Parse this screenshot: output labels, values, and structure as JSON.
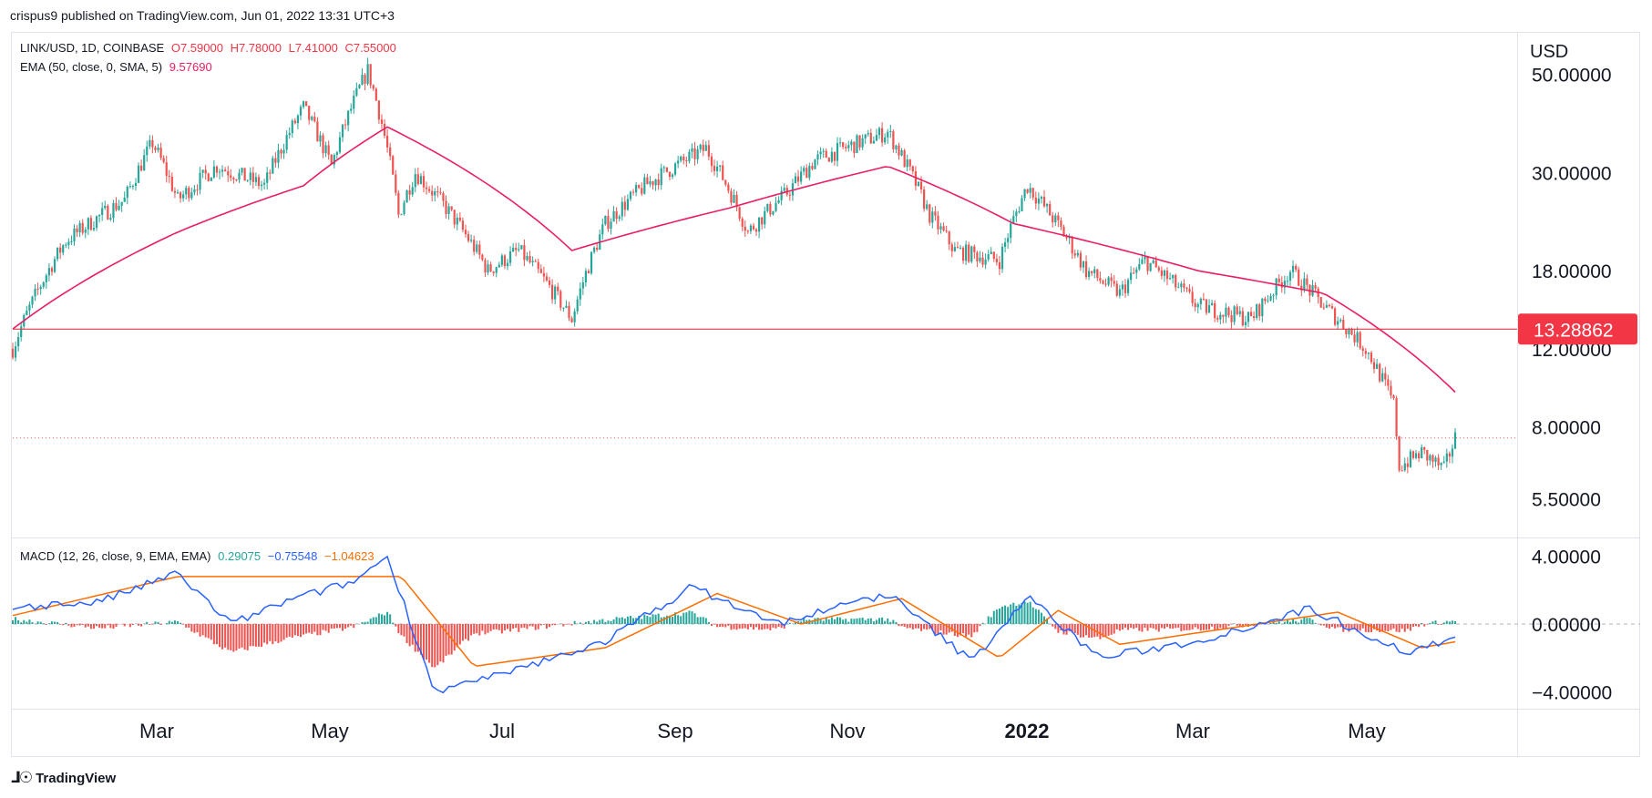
{
  "header": {
    "publisher_line": "crispus9 published on TradingView.com, Jun 01, 2022 13:31 UTC+3"
  },
  "legend_main": {
    "symbol": "LINK/USD, 1D, COINBASE",
    "o": "O7.59000",
    "h": "H7.78000",
    "l": "L7.41000",
    "c": "C7.55000",
    "ema_label": "EMA (50, close, 0, SMA, 5)",
    "ema_value": "9.57690"
  },
  "legend_macd": {
    "label": "MACD (12, 26, close, 9, EMA, EMA)",
    "hist_value": "0.29075",
    "macd_value": "−0.75548",
    "signal_value": "−1.04623"
  },
  "price_axis": {
    "currency": "USD",
    "ticks": [
      "50.00000",
      "30.00000",
      "18.00000",
      "12.00000",
      "8.00000",
      "5.50000"
    ],
    "tick_values": [
      50,
      30,
      18,
      12,
      8,
      5.5
    ],
    "highlight_label": "13.28862",
    "highlight_value": 13.28862
  },
  "macd_axis": {
    "ticks": [
      "4.00000",
      "0.00000",
      "−4.00000"
    ],
    "tick_values": [
      4,
      0,
      -4
    ]
  },
  "time_axis": {
    "labels": [
      "Mar",
      "May",
      "Jul",
      "Sep",
      "Nov",
      "2022",
      "Mar",
      "May"
    ],
    "bold": [
      false,
      false,
      false,
      false,
      false,
      true,
      false,
      false
    ]
  },
  "colors": {
    "up": "#26a69a",
    "down": "#ef5350",
    "ema": "#e91e63",
    "hline": "#f23645",
    "macd_line": "#2962ff",
    "signal_line": "#ff6d00",
    "hist_up": "#26a69a",
    "hist_down": "#ef5350"
  },
  "footer": {
    "brand": "TradingView"
  },
  "chart_data": [
    {
      "type": "candlestick",
      "title": "LINK/USD, 1D, COINBASE",
      "scale": "log",
      "ylim": [
        4.5,
        62
      ],
      "x_range": [
        "2021-01-01",
        "2022-06-01"
      ],
      "price_path": [
        {
          "date": "2021-01-01",
          "close": 12.0
        },
        {
          "date": "2021-01-20",
          "close": 21.0
        },
        {
          "date": "2021-02-10",
          "close": 26.0
        },
        {
          "date": "2021-02-20",
          "close": 35.0
        },
        {
          "date": "2021-03-01",
          "close": 26.0
        },
        {
          "date": "2021-03-15",
          "close": 31.0
        },
        {
          "date": "2021-04-01",
          "close": 28.0
        },
        {
          "date": "2021-04-15",
          "close": 42.0
        },
        {
          "date": "2021-04-25",
          "close": 31.0
        },
        {
          "date": "2021-05-08",
          "close": 51.0
        },
        {
          "date": "2021-05-19",
          "close": 24.0
        },
        {
          "date": "2021-05-25",
          "close": 30.0
        },
        {
          "date": "2021-06-20",
          "close": 18.0
        },
        {
          "date": "2021-07-01",
          "close": 20.0
        },
        {
          "date": "2021-07-20",
          "close": 14.0
        },
        {
          "date": "2021-08-01",
          "close": 23.0
        },
        {
          "date": "2021-08-15",
          "close": 28.0
        },
        {
          "date": "2021-09-06",
          "close": 34.0
        },
        {
          "date": "2021-09-21",
          "close": 22.0
        },
        {
          "date": "2021-10-05",
          "close": 27.0
        },
        {
          "date": "2021-10-15",
          "close": 32.0
        },
        {
          "date": "2021-11-10",
          "close": 37.0
        },
        {
          "date": "2021-11-25",
          "close": 24.0
        },
        {
          "date": "2021-12-04",
          "close": 20.0
        },
        {
          "date": "2021-12-20",
          "close": 19.0
        },
        {
          "date": "2021-12-30",
          "close": 28.0
        },
        {
          "date": "2022-01-20",
          "close": 18.0
        },
        {
          "date": "2022-02-01",
          "close": 16.0
        },
        {
          "date": "2022-02-10",
          "close": 19.0
        },
        {
          "date": "2022-03-01",
          "close": 15.0
        },
        {
          "date": "2022-03-20",
          "close": 14.0
        },
        {
          "date": "2022-04-03",
          "close": 18.0
        },
        {
          "date": "2022-04-15",
          "close": 15.0
        },
        {
          "date": "2022-04-30",
          "close": 12.0
        },
        {
          "date": "2022-05-10",
          "close": 9.0
        },
        {
          "date": "2022-05-12",
          "close": 6.5
        },
        {
          "date": "2022-05-20",
          "close": 7.0
        },
        {
          "date": "2022-05-28",
          "close": 6.4
        },
        {
          "date": "2022-06-01",
          "close": 7.55
        }
      ],
      "ema50_path": [
        {
          "date": "2021-01-01",
          "value": 13.3
        },
        {
          "date": "2021-03-01",
          "value": 22.0
        },
        {
          "date": "2021-04-15",
          "value": 28.0
        },
        {
          "date": "2021-05-15",
          "value": 38.0
        },
        {
          "date": "2021-07-20",
          "value": 20.0
        },
        {
          "date": "2021-09-15",
          "value": 25.0
        },
        {
          "date": "2021-11-10",
          "value": 31.0
        },
        {
          "date": "2021-12-25",
          "value": 23.0
        },
        {
          "date": "2022-03-01",
          "value": 18.0
        },
        {
          "date": "2022-04-15",
          "value": 16.0
        },
        {
          "date": "2022-06-01",
          "value": 9.5769
        }
      ],
      "horizontal_line": 13.28862,
      "last_price": 7.55
    },
    {
      "type": "line",
      "title": "MACD (12, 26, close, 9, EMA, EMA)",
      "ylim": [
        -5,
        5
      ],
      "series": [
        {
          "name": "MACD",
          "values": [
            {
              "date": "2021-01-01",
              "value": 1.0
            },
            {
              "date": "2021-02-01",
              "value": 1.3
            },
            {
              "date": "2021-03-01",
              "value": 3.0
            },
            {
              "date": "2021-03-20",
              "value": 0.0
            },
            {
              "date": "2021-04-10",
              "value": 1.4
            },
            {
              "date": "2021-05-03",
              "value": 2.5
            },
            {
              "date": "2021-05-15",
              "value": 4.0
            },
            {
              "date": "2021-06-01",
              "value": -4.0
            },
            {
              "date": "2021-06-25",
              "value": -3.0
            },
            {
              "date": "2021-08-01",
              "value": -1.0
            },
            {
              "date": "2021-09-01",
              "value": 2.2
            },
            {
              "date": "2021-10-01",
              "value": 0.0
            },
            {
              "date": "2021-11-10",
              "value": 1.8
            },
            {
              "date": "2021-12-10",
              "value": -2.2
            },
            {
              "date": "2021-12-30",
              "value": 1.6
            },
            {
              "date": "2022-01-25",
              "value": -2.0
            },
            {
              "date": "2022-03-01",
              "value": -1.0
            },
            {
              "date": "2022-04-10",
              "value": 0.9
            },
            {
              "date": "2022-05-15",
              "value": -1.7
            },
            {
              "date": "2022-06-01",
              "value": -0.75548
            }
          ]
        },
        {
          "name": "Signal",
          "values": [
            {
              "date": "2021-01-01",
              "value": 0.5
            },
            {
              "date": "2021-03-01",
              "value": 2.8
            },
            {
              "date": "2021-05-20",
              "value": 2.8
            },
            {
              "date": "2021-06-15",
              "value": -2.5
            },
            {
              "date": "2021-08-01",
              "value": -1.4
            },
            {
              "date": "2021-09-10",
              "value": 1.8
            },
            {
              "date": "2021-10-10",
              "value": 0.0
            },
            {
              "date": "2021-11-15",
              "value": 1.5
            },
            {
              "date": "2021-12-20",
              "value": -2.0
            },
            {
              "date": "2022-01-10",
              "value": 0.8
            },
            {
              "date": "2022-02-01",
              "value": -1.2
            },
            {
              "date": "2022-04-20",
              "value": 0.7
            },
            {
              "date": "2022-05-20",
              "value": -1.4
            },
            {
              "date": "2022-06-01",
              "value": -1.04623
            }
          ]
        }
      ],
      "histogram_last": 0.29075
    }
  ]
}
